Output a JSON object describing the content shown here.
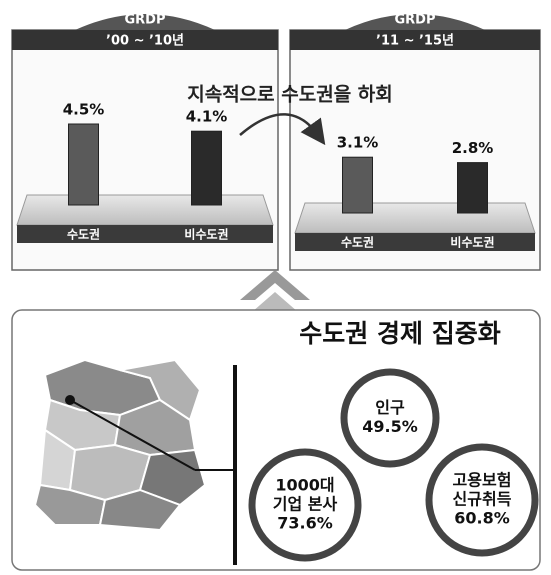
{
  "chart_data": [
    {
      "type": "bar",
      "title": "GRDP",
      "subtitle": "’00 ~ ’10년",
      "categories": [
        "수도권",
        "비수도권"
      ],
      "values": [
        4.5,
        4.1
      ],
      "value_labels": [
        "4.5%",
        "4.1%"
      ],
      "colors": [
        "#5a5a5a",
        "#2a2a2a"
      ]
    },
    {
      "type": "bar",
      "title": "GRDP",
      "subtitle": "’11 ~ ’15년",
      "categories": [
        "수도권",
        "비수도권"
      ],
      "values": [
        3.1,
        2.8
      ],
      "value_labels": [
        "3.1%",
        "2.8%"
      ],
      "colors": [
        "#5a5a5a",
        "#2a2a2a"
      ]
    }
  ],
  "annotation": "지속적으로 수도권을 하회",
  "concentration": {
    "title": "수도권 경제 집중화",
    "items": [
      {
        "lines": [
          "인구"
        ],
        "value": "49.5%"
      },
      {
        "lines": [
          "1000대",
          "기업 본사"
        ],
        "value": "73.6%"
      },
      {
        "lines": [
          "고용보험",
          "신규취득"
        ],
        "value": "60.8%"
      }
    ]
  }
}
